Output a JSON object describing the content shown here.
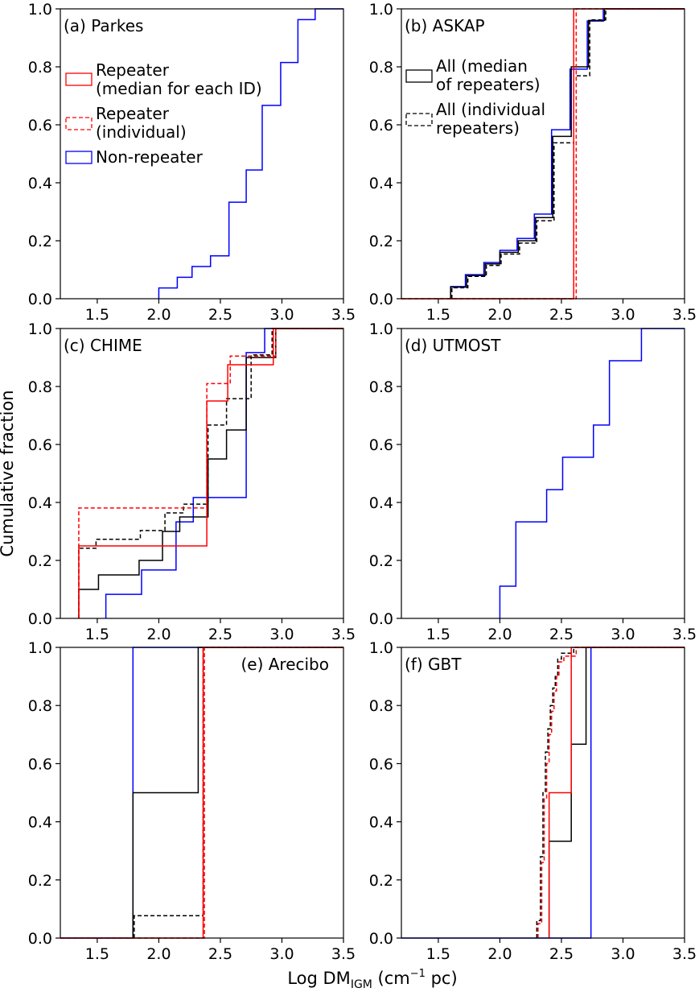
{
  "figure": {
    "ylabel": "Cumulative fraction",
    "xlabel_main": "Log DM",
    "xlabel_sub": "IGM",
    "xlabel_unit_pre": " (cm",
    "xlabel_unit_sup": "−1",
    "xlabel_unit_post": " pc)"
  },
  "legends": {
    "repeater_median": {
      "line1": "Repeater",
      "line2": "(median for each ID)"
    },
    "repeater_individual": {
      "line1": "Repeater",
      "line2": "(individual)"
    },
    "non_repeater": {
      "line1": "Non-repeater"
    },
    "all_median": {
      "line1": "All (median",
      "line2": "of repeaters)"
    },
    "all_individual": {
      "line1": "All (individual",
      "line2": "repeaters)"
    }
  },
  "chart_data": [
    {
      "type": "line",
      "title": "(a) Parkes",
      "xlim": [
        1.2,
        3.5
      ],
      "ylim": [
        0,
        1
      ],
      "xticks": [
        "1.5",
        "2.0",
        "2.5",
        "3.0",
        "3.5"
      ],
      "yticks": [
        "0.0",
        "0.2",
        "0.4",
        "0.6",
        "0.8",
        "1.0"
      ],
      "series": [
        {
          "name": "Non-repeater",
          "color": "#0000ff",
          "dashed": false,
          "x": [
            2.0,
            2.15,
            2.27,
            2.42,
            2.57,
            2.71,
            2.84,
            2.99,
            3.13,
            3.27,
            3.6
          ],
          "y": [
            0.037,
            0.074,
            0.111,
            0.148,
            0.333,
            0.444,
            0.667,
            0.815,
            0.963,
            1.0,
            1.0
          ]
        }
      ]
    },
    {
      "type": "line",
      "title": "(b) ASKAP",
      "xlim": [
        1.2,
        3.5
      ],
      "ylim": [
        0,
        1
      ],
      "xticks": [
        "1.5",
        "2.0",
        "2.5",
        "3.0",
        "3.5"
      ],
      "yticks": [
        "0.0",
        "0.2",
        "0.4",
        "0.6",
        "0.8",
        "1.0"
      ],
      "series": [
        {
          "name": "Non-repeater",
          "color": "#0000ff",
          "dashed": false,
          "x": [
            1.6,
            1.72,
            1.87,
            2.0,
            2.14,
            2.28,
            2.42,
            2.57,
            2.71,
            2.84,
            3.6
          ],
          "y": [
            0.042,
            0.083,
            0.125,
            0.167,
            0.208,
            0.292,
            0.583,
            0.792,
            0.958,
            1.0,
            1.0
          ]
        },
        {
          "name": "All (median of repeaters)",
          "color": "#000000",
          "dashed": false,
          "x": [
            1.6,
            1.73,
            1.88,
            2.0,
            2.15,
            2.29,
            2.43,
            2.58,
            2.72,
            2.85,
            3.6
          ],
          "y": [
            0.04,
            0.08,
            0.12,
            0.16,
            0.2,
            0.28,
            0.56,
            0.8,
            0.96,
            1.0,
            1.0
          ]
        },
        {
          "name": "All (individual repeaters)",
          "color": "#000000",
          "dashed": true,
          "x": [
            1.61,
            1.74,
            1.89,
            2.01,
            2.16,
            2.3,
            2.44,
            2.6,
            2.73,
            2.86,
            3.6
          ],
          "y": [
            0.038,
            0.077,
            0.115,
            0.154,
            0.192,
            0.269,
            0.538,
            0.769,
            0.962,
            1.0,
            1.0
          ]
        },
        {
          "name": "Repeater (median for each ID)",
          "color": "#ff0000",
          "dashed": false,
          "x": [
            1.2,
            2.6,
            3.6
          ],
          "y": [
            0.0,
            1.0,
            1.0
          ]
        },
        {
          "name": "Repeater (individual)",
          "color": "#ff0000",
          "dashed": true,
          "x": [
            1.2,
            2.62,
            3.6
          ],
          "y": [
            0.0,
            1.0,
            1.0
          ]
        }
      ]
    },
    {
      "type": "line",
      "title": "(c) CHIME",
      "xlim": [
        1.2,
        3.5
      ],
      "ylim": [
        0,
        1
      ],
      "xticks": [
        "1.5",
        "2.0",
        "2.5",
        "3.0",
        "3.5"
      ],
      "yticks": [
        "0.0",
        "0.2",
        "0.4",
        "0.6",
        "0.8",
        "1.0"
      ],
      "series": [
        {
          "name": "Non-repeater",
          "color": "#0000ff",
          "dashed": false,
          "x": [
            1.57,
            1.86,
            2.14,
            2.28,
            2.43,
            2.71,
            2.86,
            3.6
          ],
          "y": [
            0.083,
            0.167,
            0.333,
            0.417,
            0.417,
            0.917,
            1.0,
            1.0
          ]
        },
        {
          "name": "All (median of repeaters)",
          "color": "#000000",
          "dashed": false,
          "x": [
            1.35,
            1.51,
            1.84,
            2.03,
            2.17,
            2.25,
            2.4,
            2.55,
            2.71,
            2.95,
            3.6
          ],
          "y": [
            0.1,
            0.15,
            0.2,
            0.3,
            0.35,
            0.35,
            0.55,
            0.65,
            0.9,
            1.0,
            1.0
          ]
        },
        {
          "name": "All (individual repeaters)",
          "color": "#000000",
          "dashed": true,
          "x": [
            1.35,
            1.49,
            1.85,
            2.05,
            2.2,
            2.27,
            2.4,
            2.55,
            2.75,
            2.92,
            3.6
          ],
          "y": [
            0.242,
            0.273,
            0.303,
            0.364,
            0.394,
            0.394,
            0.667,
            0.758,
            0.909,
            1.0,
            1.0
          ]
        },
        {
          "name": "Repeater (median for each ID)",
          "color": "#ff0000",
          "dashed": false,
          "x": [
            1.35,
            2.39,
            2.56,
            2.93,
            3.6
          ],
          "y": [
            0.25,
            0.75,
            0.875,
            1.0,
            1.0
          ]
        },
        {
          "name": "Repeater (individual)",
          "color": "#ff0000",
          "dashed": true,
          "x": [
            1.35,
            2.39,
            2.58,
            2.95,
            3.6
          ],
          "y": [
            0.381,
            0.81,
            0.905,
            1.0,
            1.0
          ]
        }
      ]
    },
    {
      "type": "line",
      "title": "(d) UTMOST",
      "xlim": [
        1.2,
        3.5
      ],
      "ylim": [
        0,
        1
      ],
      "xticks": [
        "1.5",
        "2.0",
        "2.5",
        "3.0",
        "3.5"
      ],
      "yticks": [
        "0.0",
        "0.2",
        "0.4",
        "0.6",
        "0.8",
        "1.0"
      ],
      "series": [
        {
          "name": "Non-repeater",
          "color": "#0000ff",
          "dashed": false,
          "x": [
            2.0,
            2.13,
            2.38,
            2.51,
            2.76,
            2.89,
            3.15,
            3.6
          ],
          "y": [
            0.111,
            0.333,
            0.444,
            0.556,
            0.667,
            0.889,
            1.0,
            1.0
          ]
        }
      ]
    },
    {
      "type": "line",
      "title": "(e) Arecibo",
      "xlim": [
        1.2,
        3.5
      ],
      "ylim": [
        0,
        1
      ],
      "xticks": [
        "1.5",
        "2.0",
        "2.5",
        "3.0",
        "3.5"
      ],
      "yticks": [
        "0.0",
        "0.2",
        "0.4",
        "0.6",
        "0.8",
        "1.0"
      ],
      "series": [
        {
          "name": "Non-repeater",
          "color": "#0000ff",
          "dashed": false,
          "x": [
            1.2,
            1.79,
            3.6
          ],
          "y": [
            0.0,
            1.0,
            1.0
          ]
        },
        {
          "name": "All (median of repeaters)",
          "color": "#000000",
          "dashed": false,
          "x": [
            1.79,
            2.32,
            3.6
          ],
          "y": [
            0.5,
            1.0,
            1.0
          ]
        },
        {
          "name": "All (individual repeaters)",
          "color": "#000000",
          "dashed": true,
          "x": [
            1.8,
            2.34,
            2.36,
            3.6
          ],
          "y": [
            0.077,
            0.077,
            1.0,
            1.0
          ]
        },
        {
          "name": "Repeater (median for each ID)",
          "color": "#ff0000",
          "dashed": false,
          "x": [
            1.2,
            2.36,
            3.6
          ],
          "y": [
            0.0,
            1.0,
            1.0
          ]
        },
        {
          "name": "Repeater (individual)",
          "color": "#ff0000",
          "dashed": true,
          "x": [
            1.2,
            2.37,
            3.6
          ],
          "y": [
            0.0,
            1.0,
            1.0
          ]
        }
      ]
    },
    {
      "type": "line",
      "title": "(f) GBT",
      "xlim": [
        1.2,
        3.5
      ],
      "ylim": [
        0,
        1
      ],
      "xticks": [
        "1.5",
        "2.0",
        "2.5",
        "3.0",
        "3.5"
      ],
      "yticks": [
        "0.0",
        "0.2",
        "0.4",
        "0.6",
        "0.8",
        "1.0"
      ],
      "series": [
        {
          "name": "Non-repeater",
          "color": "#0000ff",
          "dashed": false,
          "x": [
            1.2,
            2.74,
            3.6
          ],
          "y": [
            0.0,
            1.0,
            1.0
          ]
        },
        {
          "name": "All (median of repeaters)",
          "color": "#000000",
          "dashed": false,
          "x": [
            2.4,
            2.58,
            2.7,
            3.6
          ],
          "y": [
            0.333,
            0.667,
            1.0,
            1.0
          ]
        },
        {
          "name": "All (individual repeaters)",
          "color": "#000000",
          "dashed": true,
          "x": [
            2.3,
            2.33,
            2.35,
            2.37,
            2.39,
            2.41,
            2.43,
            2.45,
            2.47,
            2.5,
            2.6,
            3.6
          ],
          "y": [
            0.06,
            0.28,
            0.5,
            0.64,
            0.72,
            0.8,
            0.86,
            0.9,
            0.96,
            0.98,
            1.0,
            1.0
          ]
        },
        {
          "name": "Repeater (median for each ID)",
          "color": "#ff0000",
          "dashed": false,
          "x": [
            2.4,
            2.58,
            3.6
          ],
          "y": [
            0.5,
            1.0,
            1.0
          ]
        },
        {
          "name": "Repeater (individual)",
          "color": "#ff0000",
          "dashed": true,
          "x": [
            2.31,
            2.34,
            2.36,
            2.38,
            2.4,
            2.42,
            2.44,
            2.46,
            2.48,
            2.52,
            2.62,
            3.6
          ],
          "y": [
            0.05,
            0.26,
            0.48,
            0.6,
            0.7,
            0.78,
            0.85,
            0.9,
            0.95,
            0.97,
            1.0,
            1.0
          ]
        }
      ]
    }
  ]
}
